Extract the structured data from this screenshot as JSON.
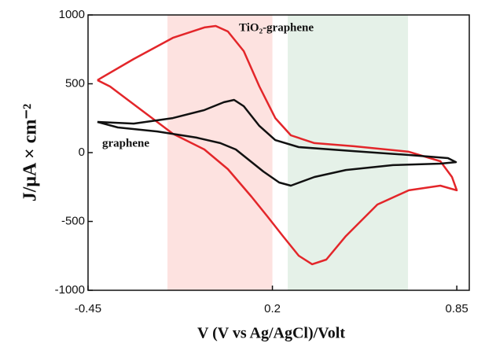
{
  "chart_data": {
    "type": "line",
    "xlabel": "V (V vs Ag/AgCl)/Volt",
    "ylabel": "J/μA × cm⁻²",
    "xlim": [
      -0.45,
      0.894
    ],
    "ylim": [
      -1000,
      1000
    ],
    "xticks": [
      -0.45,
      0.2,
      0.85
    ],
    "yticks": [
      1000,
      500,
      0,
      -500,
      -1000
    ],
    "grid": false,
    "shaded_regions": [
      {
        "xmin": -0.17,
        "xmax": 0.2,
        "color": "#fde2e0"
      },
      {
        "xmin": 0.254,
        "xmax": 0.678,
        "color": "#e5f1e8"
      }
    ],
    "annotations": [
      {
        "text": "TiO₂-graphene"
      },
      {
        "text": "graphene"
      }
    ],
    "series": [
      {
        "name": "TiO₂-graphene",
        "color": "#e3262a",
        "x": [
          -0.417,
          -0.289,
          -0.151,
          -0.04,
          0.0,
          0.043,
          0.099,
          0.154,
          0.21,
          0.265,
          0.348,
          0.487,
          0.681,
          0.792,
          0.833,
          0.85,
          0.792,
          0.681,
          0.57,
          0.459,
          0.39,
          0.34,
          0.293,
          0.237,
          0.182,
          0.126,
          0.043,
          -0.04,
          -0.151,
          -0.262,
          -0.372,
          -0.417
        ],
        "values": [
          526,
          680,
          834,
          909,
          920,
          880,
          737,
          480,
          251,
          126,
          69,
          46,
          6,
          -63,
          -177,
          -274,
          -240,
          -274,
          -377,
          -606,
          -777,
          -811,
          -749,
          -606,
          -463,
          -320,
          -120,
          23,
          137,
          309,
          480,
          526
        ]
      },
      {
        "name": "graphene",
        "color": "#111111",
        "x": [
          -0.417,
          -0.289,
          -0.151,
          -0.04,
          0.029,
          0.065,
          0.099,
          0.154,
          0.21,
          0.293,
          0.487,
          0.681,
          0.819,
          0.847,
          0.792,
          0.625,
          0.459,
          0.348,
          0.265,
          0.224,
          0.168,
          0.071,
          0.016,
          -0.068,
          -0.206,
          -0.345,
          -0.417
        ],
        "values": [
          223,
          211,
          251,
          309,
          366,
          383,
          337,
          194,
          91,
          40,
          11,
          -17,
          -40,
          -69,
          -80,
          -91,
          -126,
          -177,
          -240,
          -217,
          -137,
          23,
          69,
          109,
          154,
          183,
          223
        ]
      }
    ]
  }
}
